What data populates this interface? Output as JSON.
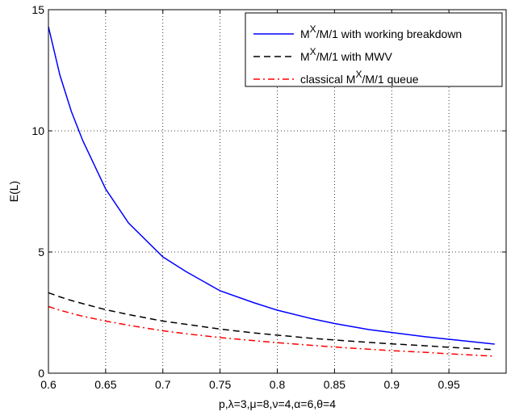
{
  "chart_data": {
    "type": "line",
    "xlabel": "p,λ=3,μ=8,ν=4,α=6,θ=4",
    "ylabel": "E(L)",
    "xlim": [
      0.6,
      1.0
    ],
    "ylim": [
      0,
      15
    ],
    "xticks": [
      0.6,
      0.65,
      0.7,
      0.75,
      0.8,
      0.85,
      0.9,
      0.95
    ],
    "xtick_labels": [
      "0.6",
      "0.65",
      "0.7",
      "0.75",
      "0.8",
      "0.85",
      "0.9",
      "0.95"
    ],
    "yticks": [
      0,
      5,
      10,
      15
    ],
    "ytick_labels": [
      "0",
      "5",
      "10",
      "15"
    ],
    "grid": true,
    "legend_position": "top-right",
    "x": [
      0.6,
      0.61,
      0.62,
      0.63,
      0.65,
      0.67,
      0.7,
      0.72,
      0.75,
      0.78,
      0.8,
      0.83,
      0.85,
      0.88,
      0.9,
      0.93,
      0.95,
      0.97,
      0.99
    ],
    "series": [
      {
        "name": "M^X/M/1 with working breakdown",
        "legend_base": "M",
        "legend_sup": "X",
        "legend_rest": "/M/1 with working breakdown",
        "color": "#0000ff",
        "dash": "solid",
        "values": [
          14.3,
          12.3,
          10.8,
          9.6,
          7.6,
          6.2,
          4.8,
          4.2,
          3.4,
          2.9,
          2.6,
          2.25,
          2.05,
          1.8,
          1.68,
          1.5,
          1.4,
          1.3,
          1.2
        ]
      },
      {
        "name": "M^X/M/1 with MWV",
        "legend_base": "M",
        "legend_sup": "X",
        "legend_rest": "/M/1 with MWV",
        "color": "#000000",
        "dash": "dashed",
        "values": [
          3.32,
          3.15,
          3.0,
          2.87,
          2.62,
          2.42,
          2.15,
          2.02,
          1.82,
          1.66,
          1.57,
          1.44,
          1.37,
          1.27,
          1.21,
          1.13,
          1.07,
          1.02,
          0.97
        ]
      },
      {
        "name": "classical M^X/M/1 queue",
        "legend_base": "classical M",
        "legend_sup": "X",
        "legend_rest": "/M/1 queue",
        "color": "#ff0000",
        "dash": "dashdot",
        "values": [
          2.75,
          2.6,
          2.47,
          2.35,
          2.15,
          1.98,
          1.75,
          1.63,
          1.47,
          1.34,
          1.26,
          1.15,
          1.08,
          0.99,
          0.93,
          0.86,
          0.8,
          0.75,
          0.7
        ]
      }
    ]
  }
}
